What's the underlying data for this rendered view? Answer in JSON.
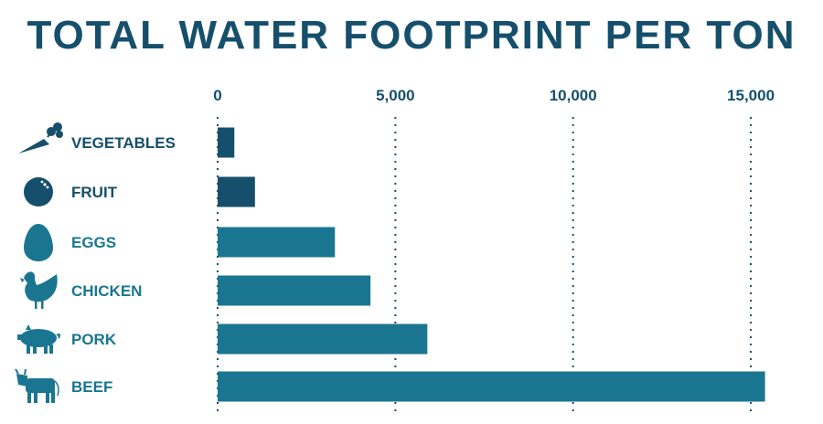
{
  "title": "TOTAL WATER FOOTPRINT PER TON",
  "colors": {
    "dark": "#154f6b",
    "teal": "#1a7690",
    "background": "#ffffff"
  },
  "chart_data": {
    "type": "bar",
    "orientation": "horizontal",
    "title": "TOTAL WATER FOOTPRINT PER TON",
    "xlabel": "",
    "ylabel": "",
    "xlim": [
      0,
      15000
    ],
    "xticks": [
      0,
      5000,
      10000,
      15000
    ],
    "xtick_labels": [
      "0",
      "5,000",
      "10,000",
      "15,000"
    ],
    "grid": "vertical dotted lines",
    "legend": "none",
    "categories": [
      "VEGETABLES",
      "FRUIT",
      "EGGS",
      "CHICKEN",
      "PORK",
      "BEEF"
    ],
    "values": [
      470,
      1050,
      3300,
      4300,
      5900,
      15400
    ],
    "bar_colors": [
      "#154f6b",
      "#154f6b",
      "#1a7690",
      "#1a7690",
      "#1a7690",
      "#1a7690"
    ],
    "icons": [
      "carrot-icon",
      "orange-icon",
      "egg-icon",
      "chicken-icon",
      "pig-icon",
      "cow-icon"
    ]
  }
}
